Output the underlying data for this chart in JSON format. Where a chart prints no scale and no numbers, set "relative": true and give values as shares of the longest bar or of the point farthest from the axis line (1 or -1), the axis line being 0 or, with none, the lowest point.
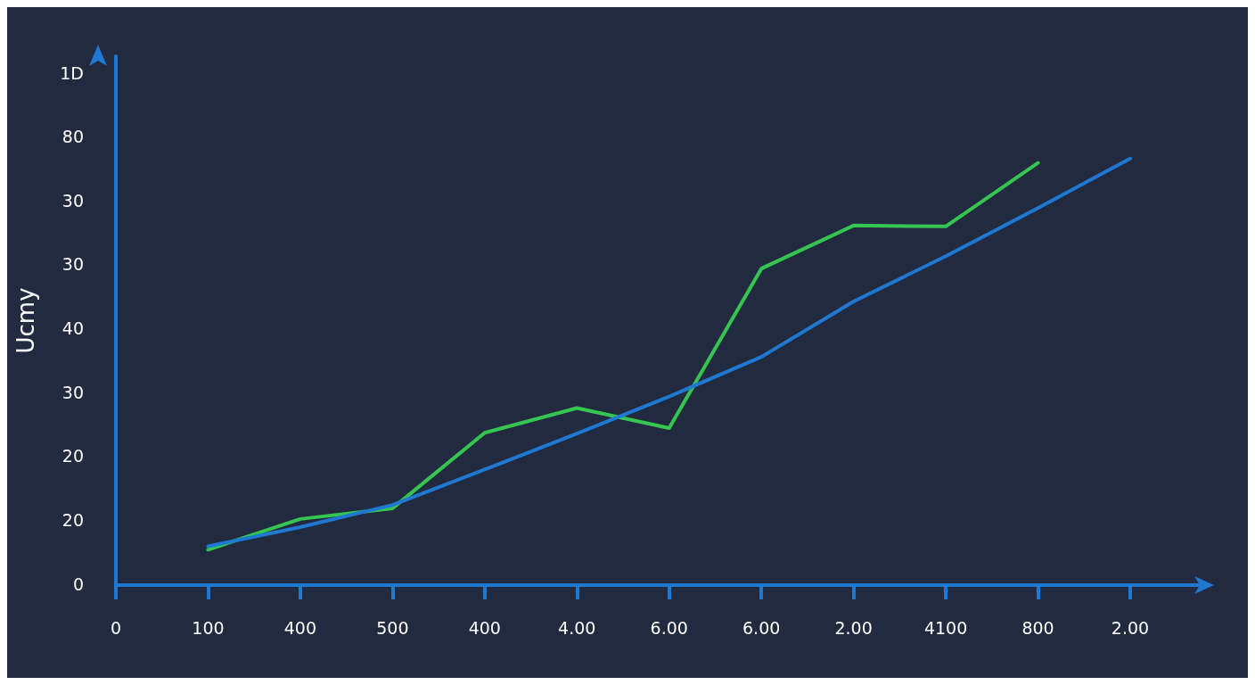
{
  "chart_data": {
    "type": "line",
    "ylabel": "Ucmy",
    "relative": true,
    "categories": [
      "0",
      "100",
      "400",
      "500",
      "400",
      "4.00",
      "6.00",
      "6.00",
      "2.00",
      "4100",
      "800",
      "2.00"
    ],
    "annotations": [
      "0",
      "20",
      "20",
      "30",
      "40",
      "30",
      "30",
      "80",
      "1D"
    ],
    "grid": false,
    "marker": "none",
    "line_style": "solid",
    "series": [
      {
        "color": "#35c651",
        "values": [
          null,
          0.083,
          0.155,
          0.18,
          0.357,
          0.415,
          0.368,
          0.742,
          0.843,
          0.841,
          0.99,
          null
        ]
      },
      {
        "color": "#1f78d1",
        "values": [
          null,
          0.091,
          0.136,
          0.188,
          0.271,
          0.355,
          0.442,
          0.535,
          0.665,
          0.771,
          0.884,
          1
        ]
      }
    ]
  }
}
